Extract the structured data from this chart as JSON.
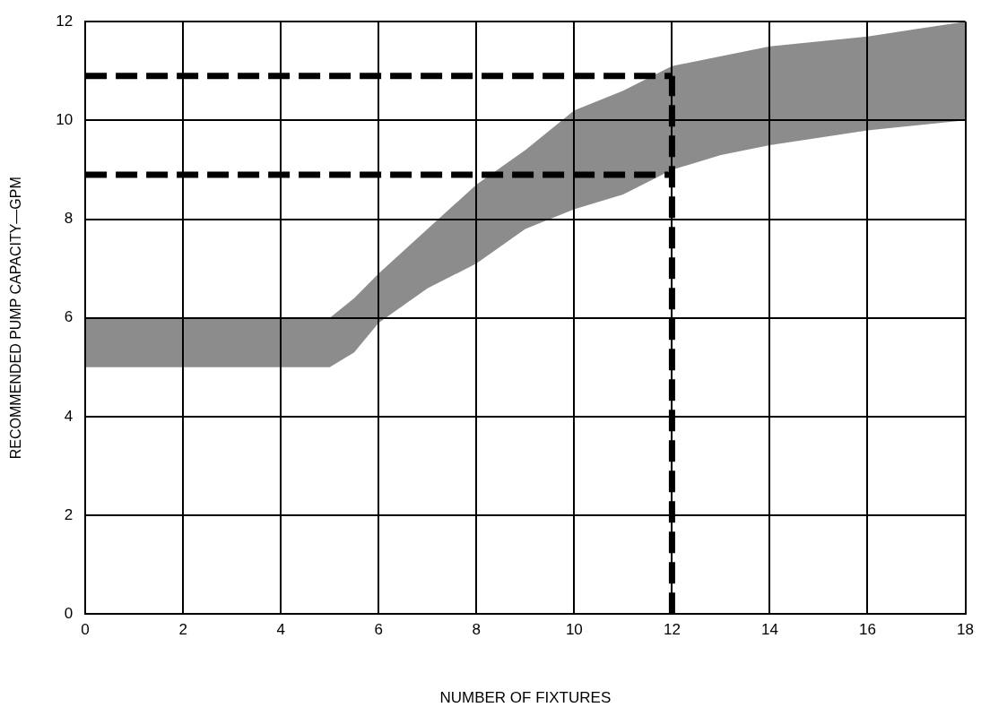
{
  "chart_data": {
    "type": "line",
    "xlabel": "NUMBER OF FIXTURES",
    "ylabel": "RECOMMENDED PUMP CAPACITY—GPM",
    "xlim": [
      0,
      18
    ],
    "xticks": [
      0,
      2,
      4,
      6,
      8,
      10,
      12,
      14,
      16,
      18
    ],
    "ylim": [
      0,
      12
    ],
    "yticks": [
      0,
      2,
      4,
      6,
      8,
      10,
      12
    ],
    "grid": true,
    "legend": false,
    "marker": "none",
    "series": [
      {
        "type": "area",
        "color": "#000000",
        "x": [
          0,
          2,
          4,
          5,
          5.5,
          6,
          7,
          8,
          9,
          10,
          11,
          12,
          13,
          14,
          16,
          18
        ],
        "values": [
          null,
          null,
          null,
          null,
          null,
          null,
          null,
          null,
          null,
          null,
          null,
          null,
          null,
          null,
          null,
          null
        ],
        "upper": [
          6,
          6,
          6,
          6,
          6.4,
          6.9,
          7.8,
          8.7,
          9.4,
          10.2,
          10.6,
          11.1,
          11.3,
          11.5,
          11.7,
          12
        ],
        "lower": [
          5,
          5,
          5,
          5,
          5.3,
          5.9,
          6.6,
          7.1,
          7.8,
          8.2,
          8.5,
          9.0,
          9.3,
          9.5,
          9.8,
          10
        ]
      },
      {
        "type": "line",
        "color": "#000000",
        "line_style": "dashed",
        "x": [
          0,
          12
        ],
        "values": [
          10.9,
          10.9
        ]
      },
      {
        "type": "line",
        "color": "#000000",
        "line_style": "dashed",
        "x": [
          0,
          12
        ],
        "values": [
          8.9,
          8.9
        ]
      },
      {
        "type": "line",
        "color": "#000000",
        "line_style": "dashed",
        "x": [
          12,
          12
        ],
        "values": [
          0,
          10.9
        ]
      }
    ]
  }
}
